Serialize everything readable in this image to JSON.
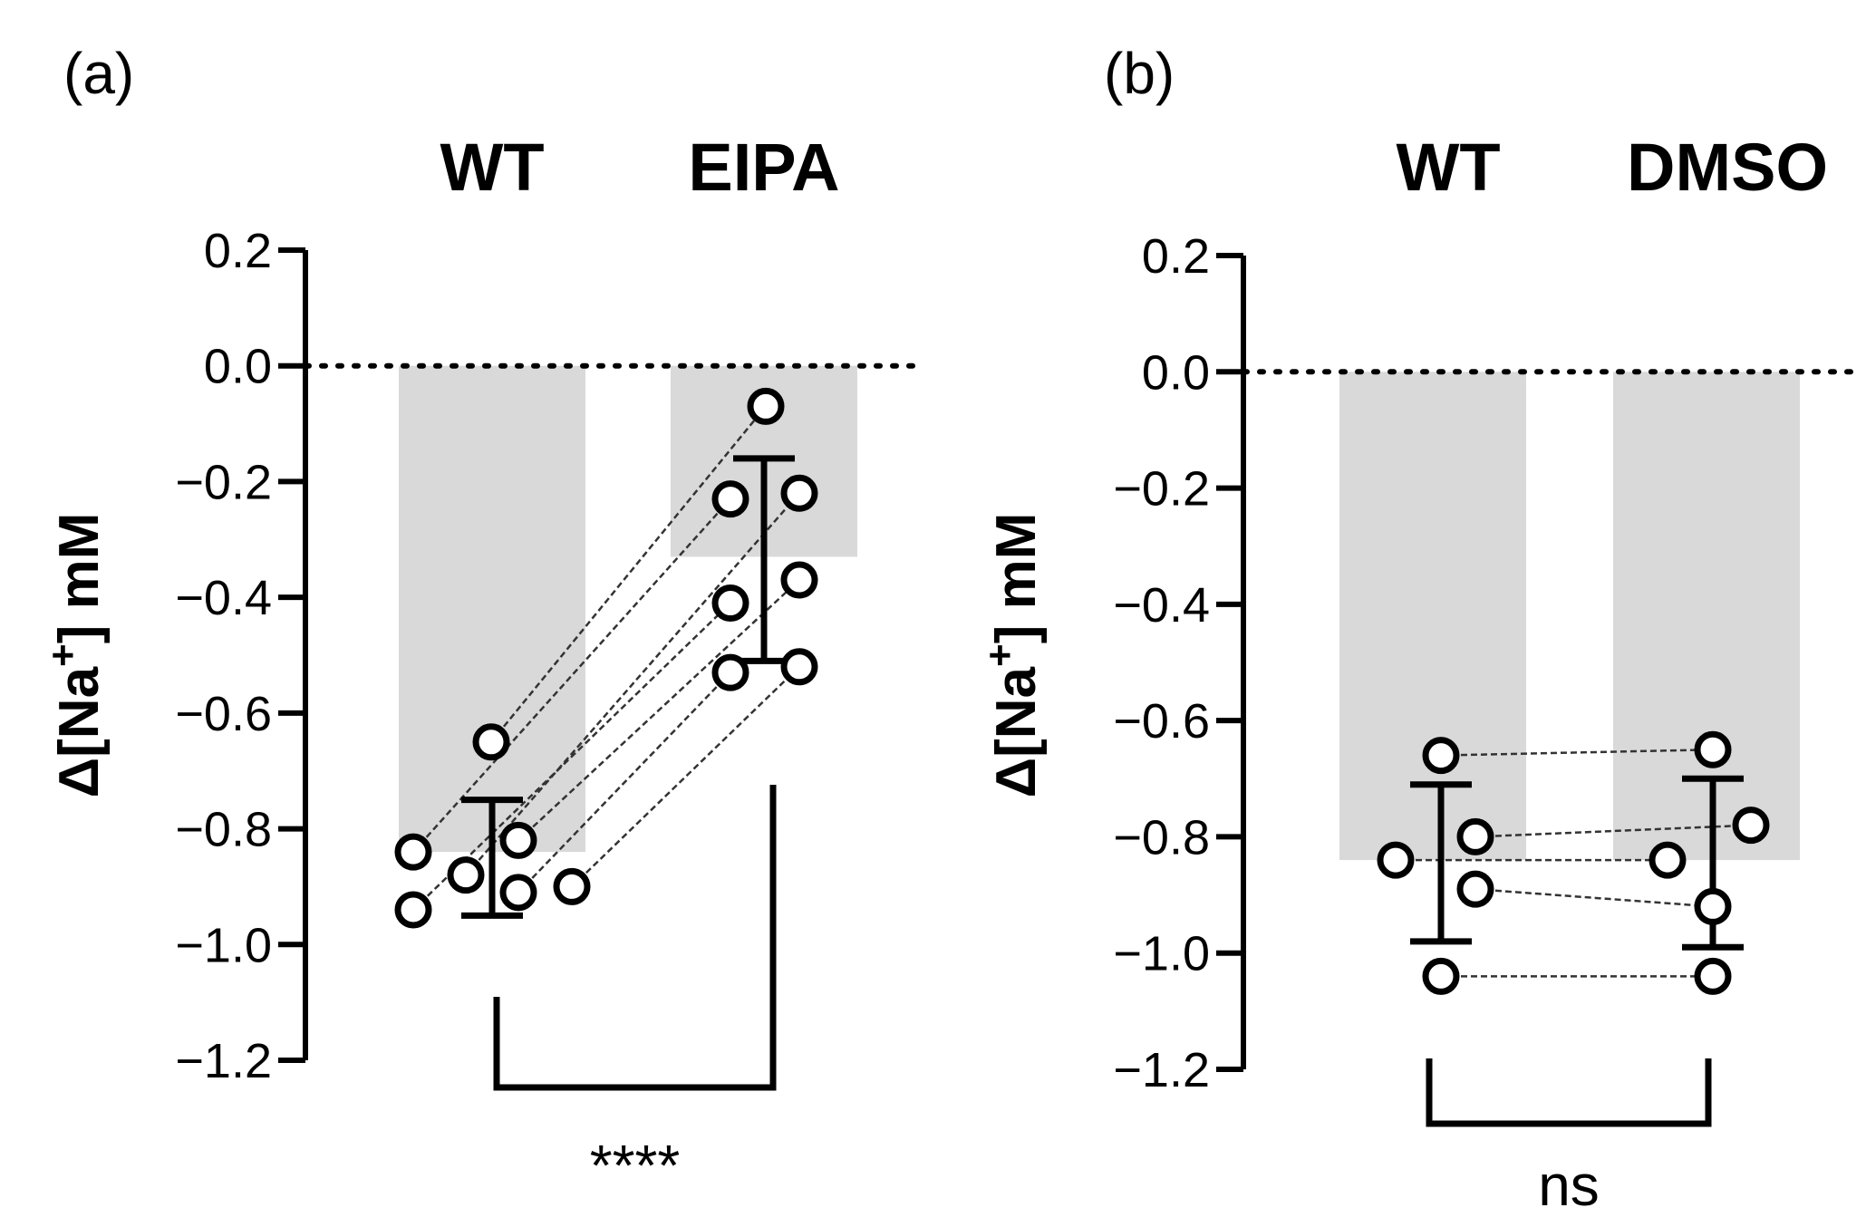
{
  "chart_data": [
    {
      "type": "bar",
      "panel_label": "(a)",
      "categories": [
        "WT",
        "EIPA"
      ],
      "ylabel": "Δ[Na⁺] mM",
      "ylabel_main": "Δ[Na",
      "ylabel_sup": "+",
      "ylabel_tail": "] mM",
      "ylim": [
        -1.2,
        0.2
      ],
      "yticks": [
        0.2,
        0.0,
        -0.2,
        -0.4,
        -0.6,
        -0.8,
        -1.0,
        -1.2
      ],
      "ytick_labels": [
        "0.2",
        "0.0",
        "−0.2",
        "−0.4",
        "−0.6",
        "−0.8",
        "−1.0",
        "−1.2"
      ],
      "reference_line": 0.0,
      "bar_means": [
        -0.84,
        -0.33
      ],
      "error_bars": [
        {
          "mean": -0.84,
          "upper": -0.75,
          "lower": -0.95
        },
        {
          "mean": -0.33,
          "upper": -0.16,
          "lower": -0.51
        }
      ],
      "paired_points": [
        {
          "before": -0.65,
          "after": -0.07
        },
        {
          "before": -0.84,
          "after": -0.23
        },
        {
          "before": -0.94,
          "after": -0.41
        },
        {
          "before": -0.88,
          "after": -0.22
        },
        {
          "before": -0.82,
          "after": -0.37
        },
        {
          "before": -0.91,
          "after": -0.53
        },
        {
          "before": -0.9,
          "after": -0.52
        }
      ],
      "significance": "****",
      "bar_color": "#d9d9d9"
    },
    {
      "type": "bar",
      "panel_label": "(b)",
      "categories": [
        "WT",
        "DMSO"
      ],
      "ylabel": "Δ[Na⁺] mM",
      "ylabel_main": "Δ[Na",
      "ylabel_sup": "+",
      "ylabel_tail": "] mM",
      "ylim": [
        -1.2,
        0.2
      ],
      "yticks": [
        0.2,
        0.0,
        -0.2,
        -0.4,
        -0.6,
        -0.8,
        -1.0,
        -1.2
      ],
      "ytick_labels": [
        "0.2",
        "0.0",
        "−0.2",
        "−0.4",
        "−0.6",
        "−0.8",
        "−1.0",
        "−1.2"
      ],
      "reference_line": 0.0,
      "bar_means": [
        -0.84,
        -0.84
      ],
      "error_bars": [
        {
          "mean": -0.84,
          "upper": -0.71,
          "lower": -0.98
        },
        {
          "mean": -0.84,
          "upper": -0.7,
          "lower": -0.99
        }
      ],
      "paired_points": [
        {
          "before": -0.66,
          "after": -0.65
        },
        {
          "before": -0.8,
          "after": -0.78
        },
        {
          "before": -0.84,
          "after": -0.84
        },
        {
          "before": -0.89,
          "after": -0.92
        },
        {
          "before": -1.04,
          "after": -1.04
        }
      ],
      "significance": "ns",
      "bar_color": "#d9d9d9"
    }
  ]
}
